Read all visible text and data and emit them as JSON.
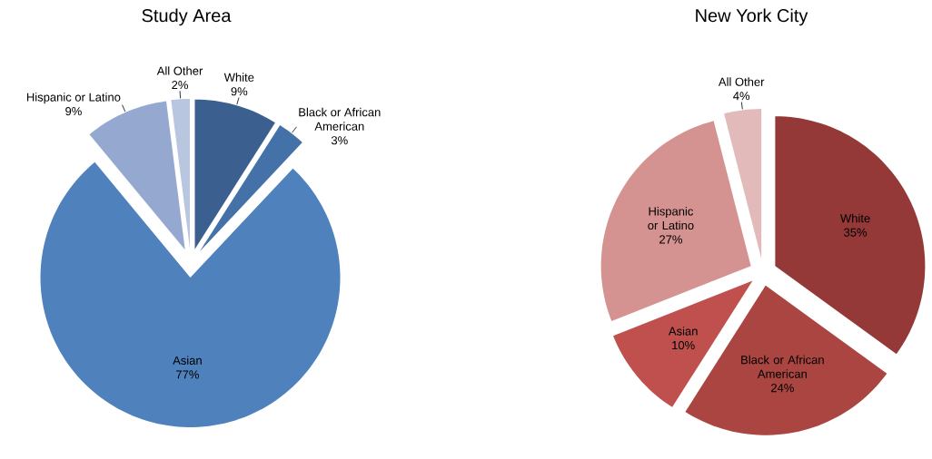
{
  "chart_data": [
    {
      "type": "pie",
      "title": "Study Area",
      "categories": [
        "White",
        "Black or African American",
        "Asian",
        "Hispanic or Latino",
        "All Other"
      ],
      "values": [
        9,
        3,
        77,
        9,
        2
      ],
      "value_labels": [
        "9%",
        "3%",
        "77%",
        "9%",
        "2%"
      ],
      "colors": [
        "#3b5f8f",
        "#4472a8",
        "#4f81bd",
        "#95a9d0",
        "#b9c6e0"
      ]
    },
    {
      "type": "pie",
      "title": "New York City",
      "categories": [
        "White",
        "Black or African American",
        "Asian",
        "Hispanic or Latino",
        "All Other"
      ],
      "values": [
        35,
        24,
        10,
        27,
        4
      ],
      "value_labels": [
        "35%",
        "24%",
        "10%",
        "27%",
        "4%"
      ],
      "colors": [
        "#943838",
        "#aa4541",
        "#c0504d",
        "#d49290",
        "#e3baba"
      ]
    }
  ]
}
